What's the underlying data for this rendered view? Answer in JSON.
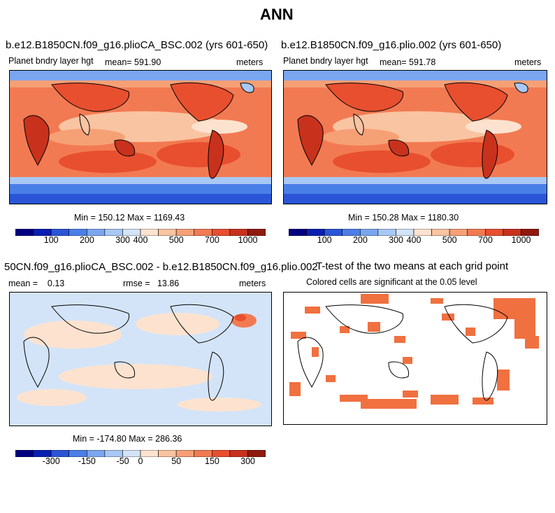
{
  "title": "ANN",
  "panels": [
    {
      "title": "b.e12.B1850CN.f09_g16.plioCA_BSC.002 (yrs 601-650)",
      "left_label": "Planet bndry layer hgt",
      "center_label": "mean= 591.90",
      "right_label": "meters",
      "minmax": "Min = 150.12 Max = 1169.43",
      "colorbar_ticks": [
        "100",
        "200",
        "300",
        "400",
        "500",
        "700",
        "1000"
      ]
    },
    {
      "title": "b.e12.B1850CN.f09_g16.plio.002 (yrs 601-650)",
      "left_label": "Planet bndry layer hgt",
      "center_label": "mean= 591.78",
      "right_label": "meters",
      "minmax": "Min = 150.28 Max = 1180.30",
      "colorbar_ticks": [
        "100",
        "200",
        "300",
        "400",
        "500",
        "700",
        "1000"
      ]
    },
    {
      "title": "50CN.f09_g16.plioCA_BSC.002 - b.e12.B1850CN.f09_g16.plio.002",
      "left_label": "mean =    0.13",
      "center_label": "rmse =   13.86",
      "right_label": "meters",
      "minmax": "Min = -174.80 Max = 286.36",
      "colorbar_ticks": [
        "-300",
        "-150",
        "-50",
        "0",
        "50",
        "150",
        "300"
      ]
    },
    {
      "title": "T-test of the two means at each grid point",
      "center_label": "Colored cells are significant at the 0.05 level"
    }
  ],
  "colors": {
    "colorbar": [
      "#000080",
      "#0a1fb0",
      "#2a55d6",
      "#4b7fe8",
      "#7aa6f0",
      "#a8c8f5",
      "#d4e4f8",
      "#fde3cf",
      "#f9c4a2",
      "#f6a076",
      "#f27a52",
      "#e84f2f",
      "#c8321c",
      "#8f1a0e"
    ],
    "land_outline": "#000000",
    "significant": "#f07040"
  }
}
